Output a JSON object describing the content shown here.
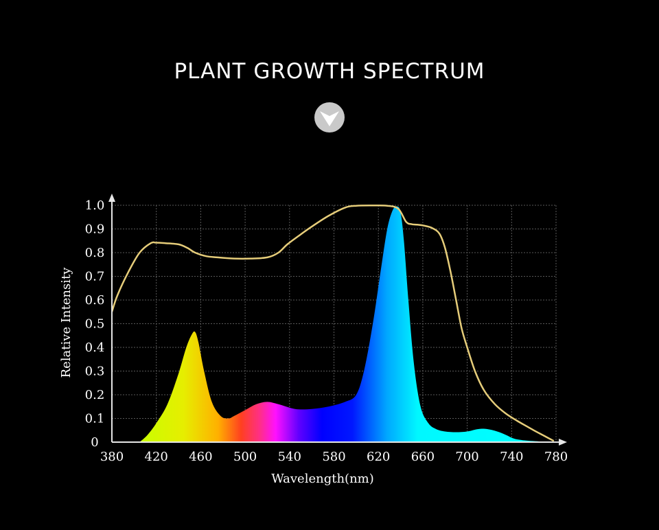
{
  "title": "PLANT GROWTH SPECTRUM",
  "chevron_icon": "chevron-down-icon",
  "chart_data": {
    "type": "area",
    "xlabel": "Wavelength(nm)",
    "ylabel": "Relative Intensity",
    "xlim": [
      380,
      780
    ],
    "ylim": [
      0,
      1.0
    ],
    "x_ticks": [
      380,
      420,
      460,
      500,
      540,
      580,
      620,
      660,
      700,
      740,
      780
    ],
    "y_ticks": [
      "0",
      "0.1",
      "0.2",
      "0.3",
      "0.4",
      "0.5",
      "0.6",
      "0.7",
      "0.8",
      "0.9",
      "1.0"
    ],
    "y_tick_values": [
      0,
      0.1,
      0.2,
      0.3,
      0.4,
      0.5,
      0.6,
      0.7,
      0.8,
      0.9,
      1.0
    ],
    "grid": true,
    "series": [
      {
        "style": "filled-spectrum",
        "x": [
          405,
          412,
          420,
          430,
          440,
          447,
          452,
          455,
          458,
          463,
          470,
          478,
          485,
          490,
          500,
          510,
          520,
          530,
          545,
          560,
          575,
          590,
          600,
          607,
          615,
          622,
          628,
          633,
          637,
          640,
          643,
          647,
          652,
          658,
          665,
          672,
          680,
          690,
          700,
          710,
          718,
          727,
          735,
          742,
          750,
          765,
          780
        ],
        "y": [
          0.0,
          0.03,
          0.08,
          0.16,
          0.29,
          0.4,
          0.455,
          0.465,
          0.42,
          0.3,
          0.17,
          0.11,
          0.1,
          0.11,
          0.135,
          0.16,
          0.17,
          0.16,
          0.14,
          0.14,
          0.15,
          0.17,
          0.2,
          0.3,
          0.5,
          0.72,
          0.9,
          0.98,
          0.995,
          0.97,
          0.85,
          0.6,
          0.33,
          0.15,
          0.08,
          0.055,
          0.045,
          0.042,
          0.045,
          0.055,
          0.055,
          0.045,
          0.03,
          0.015,
          0.008,
          0.003,
          0.0
        ]
      },
      {
        "style": "line",
        "color": "#e6cd7a",
        "x": [
          380,
          385,
          395,
          405,
          415,
          420,
          428,
          440,
          448,
          455,
          465,
          475,
          490,
          505,
          520,
          530,
          538,
          548,
          560,
          575,
          590,
          600,
          615,
          628,
          638,
          645,
          650,
          655,
          660,
          668,
          675,
          680,
          685,
          690,
          695,
          700,
          707,
          715,
          725,
          735,
          745,
          760,
          770,
          778
        ],
        "y": [
          0.55,
          0.62,
          0.72,
          0.8,
          0.84,
          0.842,
          0.84,
          0.835,
          0.82,
          0.8,
          0.785,
          0.78,
          0.775,
          0.775,
          0.78,
          0.8,
          0.835,
          0.87,
          0.91,
          0.955,
          0.99,
          0.998,
          0.999,
          0.998,
          0.985,
          0.93,
          0.92,
          0.918,
          0.915,
          0.905,
          0.88,
          0.82,
          0.72,
          0.6,
          0.48,
          0.4,
          0.3,
          0.22,
          0.16,
          0.12,
          0.09,
          0.05,
          0.025,
          0.005
        ]
      }
    ]
  }
}
